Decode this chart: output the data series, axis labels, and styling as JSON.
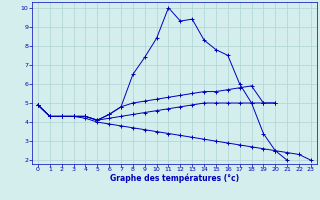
{
  "xlabel": "Graphe des températures (°c)",
  "xlim": [
    -0.5,
    23.5
  ],
  "ylim": [
    1.8,
    10.3
  ],
  "xticks": [
    0,
    1,
    2,
    3,
    4,
    5,
    6,
    7,
    8,
    9,
    10,
    11,
    12,
    13,
    14,
    15,
    16,
    17,
    18,
    19,
    20,
    21,
    22,
    23
  ],
  "yticks": [
    2,
    3,
    4,
    5,
    6,
    7,
    8,
    9,
    10
  ],
  "background_color": "#d4eeee",
  "line_color": "#0000bb",
  "grid_color": "#b0d4d4",
  "lines": [
    {
      "x": [
        0,
        1,
        2,
        3,
        4,
        5,
        6,
        7,
        8,
        9,
        10,
        11,
        12,
        13,
        14,
        15,
        16,
        17,
        18,
        19,
        20,
        21
      ],
      "y": [
        4.9,
        4.3,
        4.3,
        4.3,
        4.3,
        4.1,
        4.4,
        4.8,
        6.5,
        7.4,
        8.4,
        10.0,
        9.3,
        9.4,
        8.3,
        7.8,
        7.5,
        6.0,
        5.0,
        3.4,
        2.5,
        2.0
      ]
    },
    {
      "x": [
        0,
        1,
        2,
        3,
        4,
        5,
        6,
        7,
        8,
        9,
        10,
        11,
        12,
        13,
        14,
        15,
        16,
        17,
        18,
        19,
        20
      ],
      "y": [
        4.9,
        4.3,
        4.3,
        4.3,
        4.3,
        4.1,
        4.4,
        4.8,
        5.0,
        5.1,
        5.2,
        5.3,
        5.4,
        5.5,
        5.6,
        5.6,
        5.7,
        5.8,
        5.9,
        5.0,
        5.0
      ]
    },
    {
      "x": [
        0,
        1,
        2,
        3,
        4,
        5,
        6,
        7,
        8,
        9,
        10,
        11,
        12,
        13,
        14,
        15,
        16,
        17,
        18,
        19,
        20
      ],
      "y": [
        4.9,
        4.3,
        4.3,
        4.3,
        4.3,
        4.1,
        4.2,
        4.3,
        4.4,
        4.5,
        4.6,
        4.7,
        4.8,
        4.9,
        5.0,
        5.0,
        5.0,
        5.0,
        5.0,
        5.0,
        5.0
      ]
    },
    {
      "x": [
        0,
        1,
        2,
        3,
        4,
        5,
        6,
        7,
        8,
        9,
        10,
        11,
        12,
        13,
        14,
        15,
        16,
        17,
        18,
        19,
        20,
        21,
        22,
        23
      ],
      "y": [
        4.9,
        4.3,
        4.3,
        4.3,
        4.2,
        4.0,
        3.9,
        3.8,
        3.7,
        3.6,
        3.5,
        3.4,
        3.3,
        3.2,
        3.1,
        3.0,
        2.9,
        2.8,
        2.7,
        2.6,
        2.5,
        2.4,
        2.3,
        2.0
      ]
    }
  ]
}
